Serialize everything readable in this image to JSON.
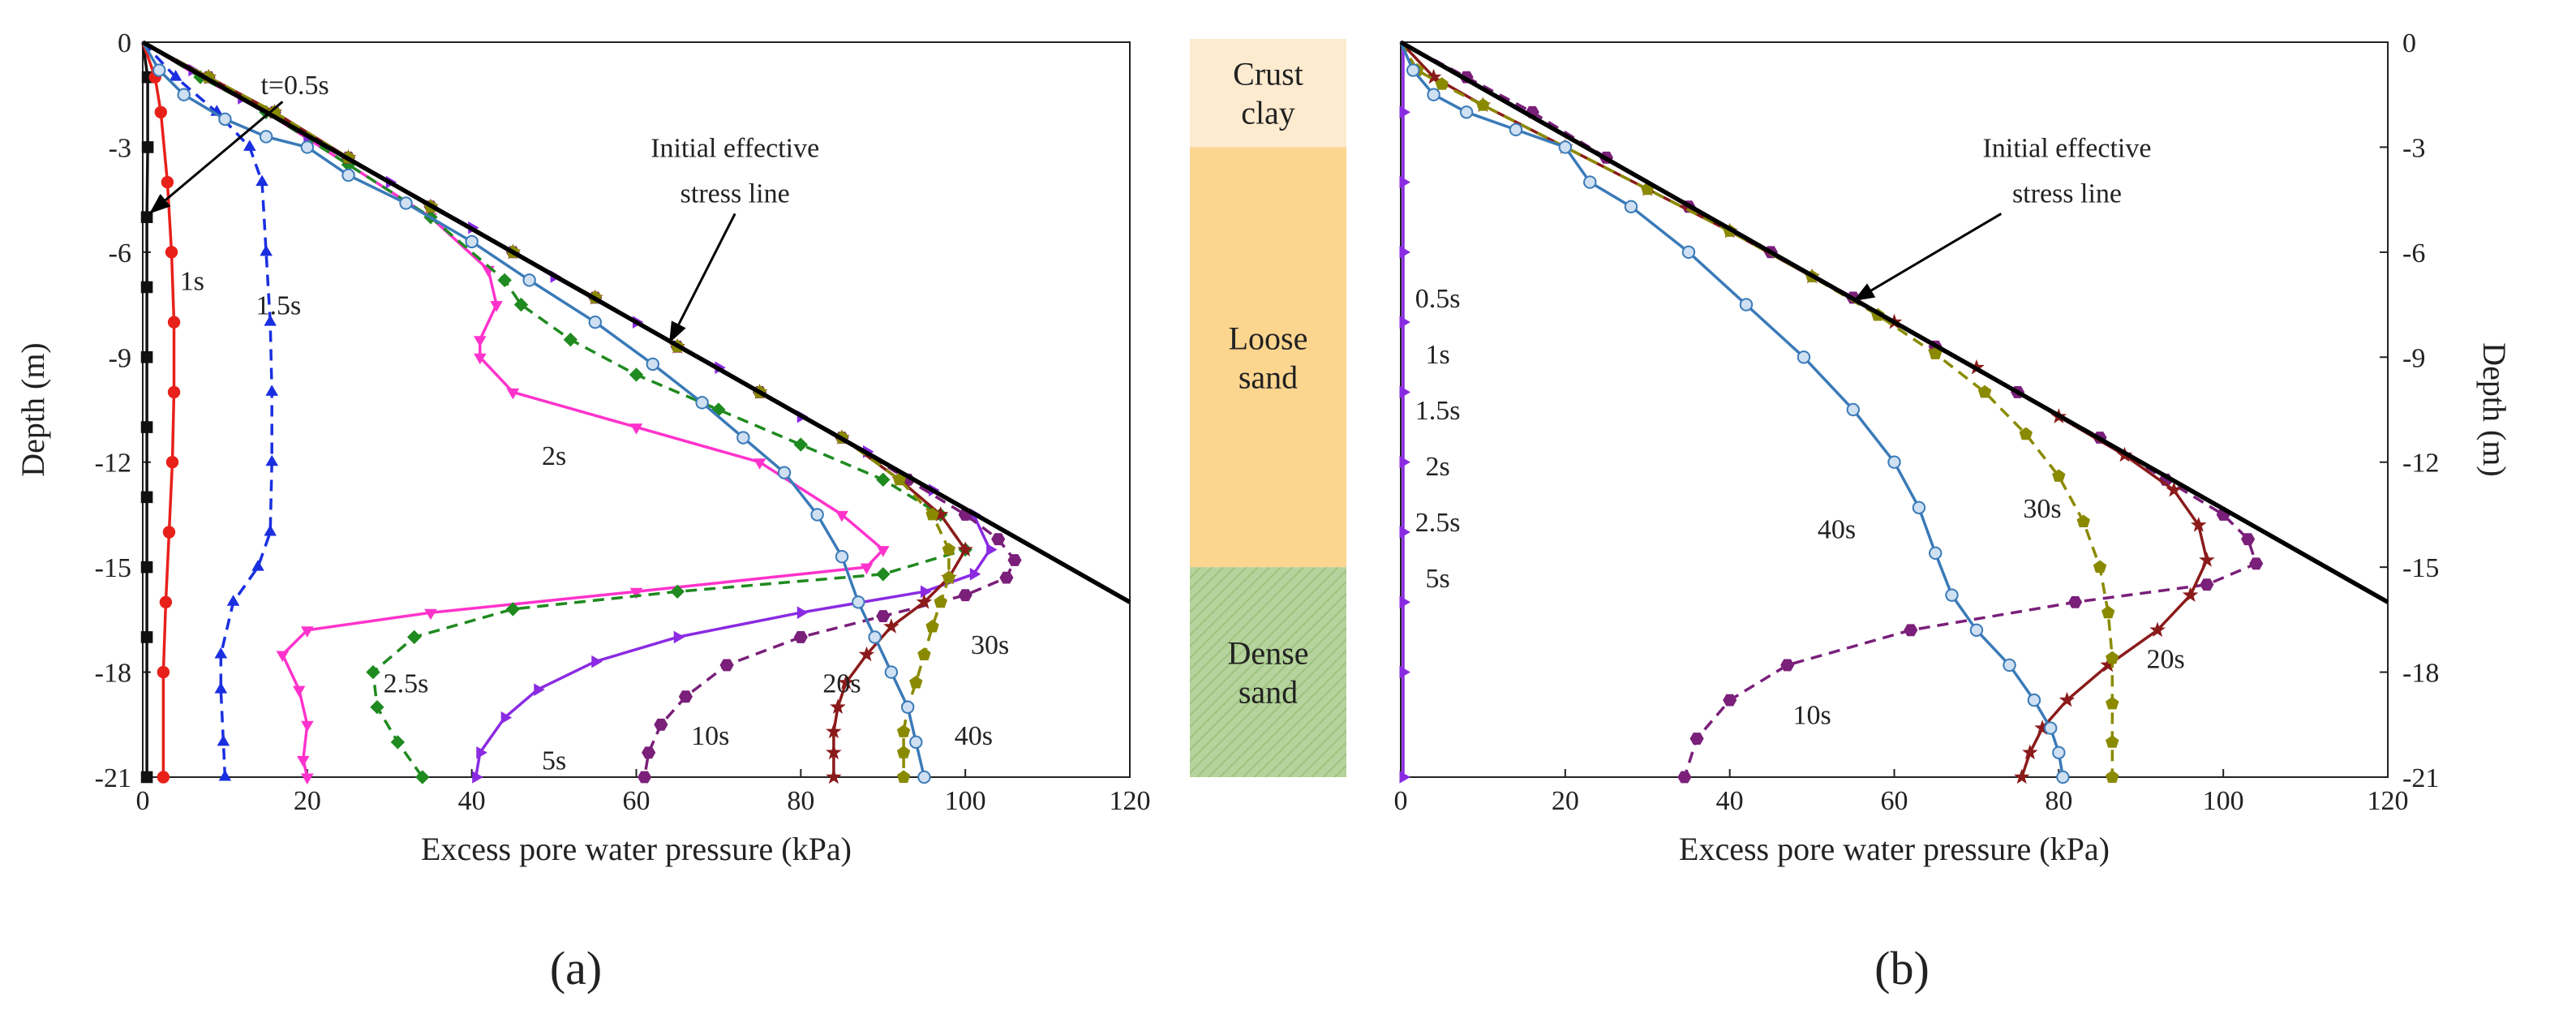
{
  "chart_data": [
    {
      "type": "line",
      "panel": "(a)",
      "xlabel": "Excess pore water pressure (kPa)",
      "ylabel": "Depth (m)",
      "xlim": [
        0,
        120
      ],
      "ylim": [
        -21,
        0
      ],
      "xticks": [
        0,
        20,
        40,
        60,
        80,
        100,
        120
      ],
      "yticks": [
        0,
        -3,
        -6,
        -9,
        -12,
        -15,
        -18,
        -21
      ],
      "grid": false,
      "reference_line": {
        "label": "Initial effective stress line",
        "x": [
          0,
          120
        ],
        "y": [
          0,
          -16
        ]
      },
      "series": [
        {
          "name": "t=0.5s",
          "color": "#111111",
          "dash": false,
          "marker": "square",
          "x": [
            0,
            0.6,
            0.6,
            0.5,
            0.5,
            0.5,
            0.5,
            0.5,
            0.5,
            0.5,
            0.5
          ],
          "y": [
            0,
            -1,
            -3,
            -5,
            -7,
            -9,
            -11,
            -13,
            -15,
            -17,
            -21
          ]
        },
        {
          "name": "1s",
          "color": "#e8201a",
          "dash": false,
          "marker": "circle",
          "x": [
            0,
            1.5,
            2.2,
            3,
            3.5,
            3.8,
            3.8,
            3.6,
            3.2,
            2.8,
            2.5,
            2.5
          ],
          "y": [
            0,
            -1,
            -2,
            -4,
            -6,
            -8,
            -10,
            -12,
            -14,
            -16,
            -18,
            -21
          ]
        },
        {
          "name": "1.5s",
          "color": "#1a2fe0",
          "dash": true,
          "marker": "triangle",
          "x": [
            0,
            4,
            9,
            13,
            14.5,
            15,
            15.5,
            15.7,
            15.7,
            15.5,
            14,
            11,
            9.5,
            9.5,
            9.8,
            10
          ],
          "y": [
            0,
            -1,
            -2,
            -3,
            -4,
            -6,
            -8,
            -10,
            -12,
            -14,
            -15,
            -16,
            -17.5,
            -18.5,
            -20,
            -21
          ]
        },
        {
          "name": "2s",
          "color": "#ff33cc",
          "dash": false,
          "marker": "triangle-down",
          "x": [
            0,
            7,
            15,
            25,
            35,
            42,
            43,
            41,
            41,
            45,
            60,
            75,
            85,
            90,
            88,
            60,
            35,
            20,
            17,
            19,
            20,
            19.5,
            20
          ],
          "y": [
            0,
            -1,
            -2,
            -3.5,
            -5,
            -6.5,
            -7.5,
            -8.5,
            -9,
            -10,
            -11,
            -12,
            -13.5,
            -14.5,
            -15,
            -15.7,
            -16.3,
            -16.8,
            -17.5,
            -18.5,
            -19.5,
            -20.5,
            -21
          ]
        },
        {
          "name": "2.5s",
          "color": "#1f8a1f",
          "dash": true,
          "marker": "diamond",
          "x": [
            0,
            7,
            15,
            25,
            35,
            44,
            46,
            52,
            60,
            70,
            80,
            90,
            97,
            100,
            90,
            65,
            45,
            33,
            28,
            28.5,
            31,
            34
          ],
          "y": [
            0,
            -1,
            -2,
            -3.5,
            -5,
            -6.8,
            -7.5,
            -8.5,
            -9.5,
            -10.5,
            -11.5,
            -12.5,
            -13.5,
            -14.5,
            -15.2,
            -15.7,
            -16.2,
            -17,
            -18,
            -19,
            -20,
            -21
          ]
        },
        {
          "name": "5s",
          "color": "#8a2be2",
          "dash": false,
          "marker": "triangle-right",
          "x": [
            0,
            6,
            12,
            20,
            30,
            40,
            50,
            60,
            70,
            80,
            88,
            96,
            101,
            103,
            101,
            95,
            80,
            65,
            55,
            48,
            44,
            41,
            40.5
          ],
          "y": [
            0,
            -0.8,
            -1.6,
            -2.7,
            -4,
            -5.3,
            -6.7,
            -8,
            -9.3,
            -10.7,
            -11.7,
            -12.8,
            -13.5,
            -14.5,
            -15.2,
            -15.7,
            -16.3,
            -17,
            -17.7,
            -18.5,
            -19.3,
            -20.3,
            -21
          ]
        },
        {
          "name": "10s",
          "color": "#7a1f7a",
          "dash": true,
          "marker": "hexagon",
          "x": [
            0,
            8,
            16,
            25,
            35,
            45,
            55,
            65,
            75,
            85,
            93,
            100,
            104,
            106,
            105,
            100,
            90,
            80,
            71,
            66,
            63,
            61.5,
            61
          ],
          "y": [
            0,
            -1,
            -2,
            -3.3,
            -4.7,
            -6,
            -7.3,
            -8.7,
            -10,
            -11.3,
            -12.5,
            -13.5,
            -14.2,
            -14.8,
            -15.3,
            -15.8,
            -16.4,
            -17,
            -17.8,
            -18.7,
            -19.5,
            -20.3,
            -21
          ]
        },
        {
          "name": "20s",
          "color": "#8b1a1a",
          "dash": false,
          "marker": "star",
          "x": [
            0,
            8,
            16,
            25,
            35,
            45,
            55,
            65,
            75,
            85,
            92,
            97,
            100,
            98,
            95,
            91,
            88,
            85.5,
            84.5,
            84,
            84,
            84
          ],
          "y": [
            0,
            -1,
            -2,
            -3.3,
            -4.7,
            -6,
            -7.3,
            -8.7,
            -10,
            -11.3,
            -12.5,
            -13.5,
            -14.5,
            -15.3,
            -16,
            -16.7,
            -17.5,
            -18.3,
            -19,
            -19.7,
            -20.3,
            -21
          ]
        },
        {
          "name": "30s",
          "color": "#8a8a00",
          "dash": true,
          "marker": "pentagon",
          "x": [
            0,
            8,
            16,
            25,
            35,
            45,
            55,
            65,
            75,
            85,
            92,
            96,
            98,
            98,
            97,
            96,
            95,
            94,
            93,
            92.5,
            92.5,
            92.5
          ],
          "y": [
            0,
            -1,
            -2,
            -3.3,
            -4.7,
            -6,
            -7.3,
            -8.7,
            -10,
            -11.3,
            -12.5,
            -13.5,
            -14.5,
            -15.3,
            -16,
            -16.7,
            -17.5,
            -18.3,
            -19,
            -19.7,
            -20.3,
            -21
          ]
        },
        {
          "name": "40s",
          "color": "#3a7ab8",
          "dash": false,
          "marker": "ring",
          "x": [
            0,
            2,
            5,
            10,
            15,
            20,
            25,
            32,
            40,
            47,
            55,
            62,
            68,
            73,
            78,
            82,
            85,
            87,
            89,
            91,
            93,
            94,
            95
          ],
          "y": [
            0,
            -0.8,
            -1.5,
            -2.2,
            -2.7,
            -3,
            -3.8,
            -4.6,
            -5.7,
            -6.8,
            -8,
            -9.2,
            -10.3,
            -11.3,
            -12.3,
            -13.5,
            -14.7,
            -16,
            -17,
            -18,
            -19,
            -20,
            -21
          ]
        }
      ],
      "annotations": [
        {
          "text": "t=0.5s",
          "x": 18.5,
          "y": -1.2
        },
        {
          "text": "1s",
          "x": 6,
          "y": -6.8
        },
        {
          "text": "1.5s",
          "x": 16.5,
          "y": -7.5
        },
        {
          "text": "2s",
          "x": 50,
          "y": -11.8
        },
        {
          "text": "2.5s",
          "x": 32,
          "y": -18.3
        },
        {
          "text": "5s",
          "x": 50,
          "y": -20.5
        },
        {
          "text": "10s",
          "x": 69,
          "y": -19.8
        },
        {
          "text": "20s",
          "x": 85,
          "y": -18.3
        },
        {
          "text": "30s",
          "x": 103,
          "y": -17.2
        },
        {
          "text": "40s",
          "x": 101,
          "y": -19.8
        },
        {
          "text": "Initial effective",
          "x": 72,
          "y": -3
        },
        {
          "text": "stress line",
          "x": 72,
          "y": -4.3
        }
      ]
    },
    {
      "type": "line",
      "panel": "(b)",
      "xlabel": "Excess pore water pressure (kPa)",
      "ylabel": "Depth (m)",
      "xlim": [
        0,
        120
      ],
      "ylim": [
        -21,
        0
      ],
      "xticks": [
        0,
        20,
        40,
        60,
        80,
        100,
        120
      ],
      "yticks": [
        0,
        -3,
        -6,
        -9,
        -12,
        -15,
        -18,
        -21
      ],
      "y_axis_side": "right",
      "grid": false,
      "reference_line": {
        "label": "Initial effective stress line",
        "x": [
          0,
          120
        ],
        "y": [
          0,
          -16
        ]
      },
      "series": [
        {
          "name": "0.5s",
          "color": "#8a2be2",
          "dash": false,
          "marker": "triangle-right",
          "x": [
            0.3,
            0.3,
            0.3,
            0.3,
            0.3,
            0.3,
            0.3,
            0.3,
            0.3,
            0.3,
            0.3
          ],
          "y": [
            0,
            -2,
            -4,
            -6,
            -8,
            -10,
            -12,
            -14,
            -16,
            -18,
            -21
          ]
        },
        {
          "name": "10s",
          "color": "#7a1f7a",
          "dash": true,
          "marker": "hexagon",
          "x": [
            0,
            8,
            16,
            25,
            35,
            45,
            55,
            65,
            75,
            85,
            93,
            100,
            103,
            104,
            98,
            82,
            62,
            47,
            40,
            36,
            34.5
          ],
          "y": [
            0,
            -1,
            -2,
            -3.3,
            -4.7,
            -6,
            -7.3,
            -8.7,
            -10,
            -11.3,
            -12.5,
            -13.5,
            -14.2,
            -14.9,
            -15.5,
            -16,
            -16.8,
            -17.8,
            -18.8,
            -19.9,
            -21
          ]
        },
        {
          "name": "20s",
          "color": "#8b1a1a",
          "dash": false,
          "marker": "star",
          "x": [
            0,
            4,
            10,
            20,
            30,
            40,
            50,
            60,
            70,
            80,
            88,
            94,
            97,
            98,
            96,
            92,
            86,
            81,
            78,
            76.5,
            75.5
          ],
          "y": [
            0,
            -1,
            -1.8,
            -3,
            -4.2,
            -5.4,
            -6.7,
            -8,
            -9.3,
            -10.7,
            -11.8,
            -12.8,
            -13.8,
            -14.8,
            -15.8,
            -16.8,
            -17.8,
            -18.8,
            -19.6,
            -20.3,
            -21
          ]
        },
        {
          "name": "30s",
          "color": "#8a8a00",
          "dash": true,
          "marker": "pentagon",
          "x": [
            0,
            2,
            5,
            10,
            20,
            30,
            40,
            50,
            58,
            65,
            71,
            76,
            80,
            83,
            85,
            86,
            86.5,
            86.5,
            86.5,
            86.5
          ],
          "y": [
            0,
            -0.8,
            -1.2,
            -1.8,
            -3,
            -4.2,
            -5.4,
            -6.7,
            -7.8,
            -8.9,
            -10,
            -11.2,
            -12.4,
            -13.7,
            -15,
            -16.3,
            -17.6,
            -18.9,
            -20,
            -21
          ]
        },
        {
          "name": "40s",
          "color": "#3a7ab8",
          "dash": false,
          "marker": "ring",
          "x": [
            0,
            1.5,
            4,
            8,
            14,
            20,
            23,
            28,
            35,
            42,
            49,
            55,
            60,
            63,
            65,
            67,
            70,
            74,
            77,
            79,
            80,
            80.5
          ],
          "y": [
            0,
            -0.8,
            -1.5,
            -2,
            -2.5,
            -3,
            -4,
            -4.7,
            -6,
            -7.5,
            -9,
            -10.5,
            -12,
            -13.3,
            -14.6,
            -15.8,
            -16.8,
            -17.8,
            -18.8,
            -19.6,
            -20.3,
            -21
          ]
        }
      ],
      "annotations": [
        {
          "text": "0.5s",
          "x": 4.5,
          "y": -7.3
        },
        {
          "text": "1s",
          "x": 4.5,
          "y": -8.9
        },
        {
          "text": "1.5s",
          "x": 4.5,
          "y": -10.5
        },
        {
          "text": "2s",
          "x": 4.5,
          "y": -12.1
        },
        {
          "text": "2.5s",
          "x": 4.5,
          "y": -13.7
        },
        {
          "text": "5s",
          "x": 4.5,
          "y": -15.3
        },
        {
          "text": "10s",
          "x": 50,
          "y": -19.2
        },
        {
          "text": "20s",
          "x": 93,
          "y": -17.6
        },
        {
          "text": "30s",
          "x": 78,
          "y": -13.3
        },
        {
          "text": "40s",
          "x": 53,
          "y": -13.9
        },
        {
          "text": "Initial effective",
          "x": 81,
          "y": -3
        },
        {
          "text": "stress line",
          "x": 81,
          "y": -4.3
        }
      ]
    }
  ],
  "soil_column": {
    "layers": [
      {
        "label_lines": [
          "Crust",
          "clay"
        ],
        "top": 0,
        "bottom": -3,
        "color": "#fdebd0",
        "hatched": false
      },
      {
        "label_lines": [
          "Loose",
          "sand"
        ],
        "top": -3,
        "bottom": -15,
        "color": "#fcd58f",
        "hatched": false
      },
      {
        "label_lines": [
          "Dense",
          "sand"
        ],
        "top": -15,
        "bottom": -21,
        "color": "#bcd8a4",
        "hatched": true
      }
    ]
  },
  "captions": {
    "a": "(a)",
    "b": "(b)"
  }
}
